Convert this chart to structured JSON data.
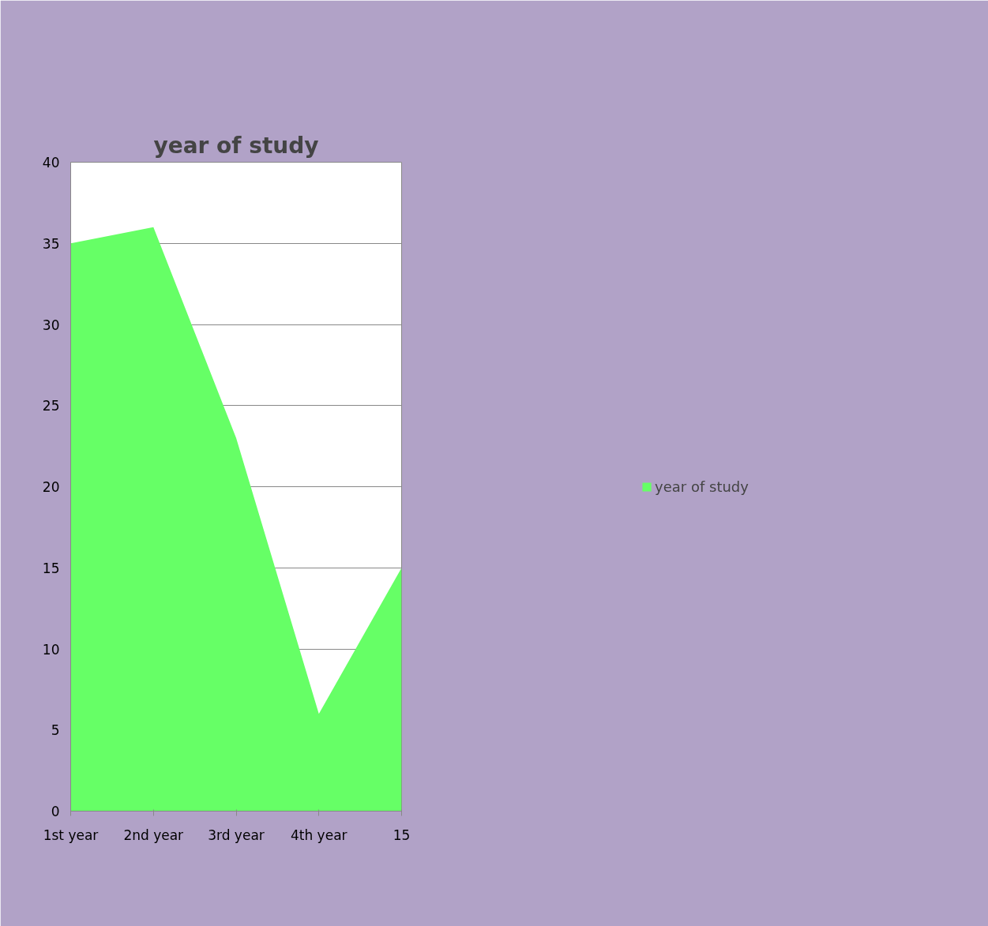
{
  "chart_data": {
    "type": "area",
    "title": "year of study",
    "categories": [
      "1st year",
      "2nd year",
      "3rd year",
      "4th year",
      "15"
    ],
    "series": [
      {
        "name": "year of study",
        "color": "#66ff66",
        "values": [
          35,
          36,
          23,
          6,
          15
        ]
      }
    ],
    "ylim": [
      0,
      40
    ],
    "yticks": [
      0,
      5,
      10,
      15,
      20,
      25,
      30,
      35,
      40
    ],
    "grid": "y",
    "legend": "right"
  }
}
